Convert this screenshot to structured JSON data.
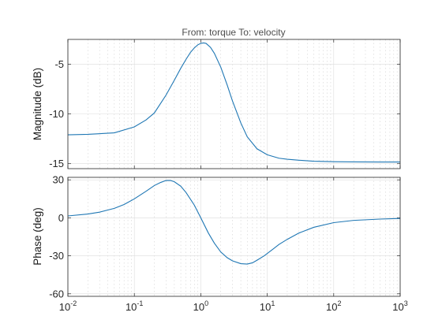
{
  "chart_data": {
    "type": "line",
    "title": "From: torque  To: velocity",
    "curve_color": "#1f77b4",
    "x_axis": {
      "scale": "log",
      "range": [
        0.01,
        1000
      ],
      "tick_values": [
        0.01,
        0.1,
        1,
        10,
        100,
        1000
      ],
      "tick_labels": [
        {
          "base": "10",
          "exp": "-2"
        },
        {
          "base": "10",
          "exp": "-1"
        },
        {
          "base": "10",
          "exp": "0"
        },
        {
          "base": "10",
          "exp": "1"
        },
        {
          "base": "10",
          "exp": "2"
        },
        {
          "base": "10",
          "exp": "3"
        }
      ],
      "grid": true,
      "minor_grid": true
    },
    "panels": [
      {
        "name": "magnitude",
        "ylabel": "Magnitude (dB)",
        "ylim": [
          -15.5,
          -2.5
        ],
        "yticks": [
          -15,
          -10,
          -5
        ],
        "ytick_labels": [
          "-15",
          "-10",
          "-5"
        ],
        "series": [
          {
            "x": [
              0.01,
              0.02,
              0.05,
              0.1,
              0.15,
              0.2,
              0.3,
              0.4,
              0.5,
              0.6,
              0.7,
              0.8,
              0.9,
              1.0,
              1.1,
              1.2,
              1.4,
              1.6,
              2.0,
              2.5,
              3,
              4,
              5,
              7,
              10,
              15,
              20,
              30,
              50,
              100,
              200,
              500,
              1000
            ],
            "y": [
              -12.1,
              -12.05,
              -11.9,
              -11.3,
              -10.6,
              -9.9,
              -8.1,
              -6.6,
              -5.4,
              -4.5,
              -3.8,
              -3.35,
              -3.05,
              -2.9,
              -2.85,
              -2.9,
              -3.3,
              -3.9,
              -5.3,
              -7.1,
              -8.7,
              -10.9,
              -12.3,
              -13.5,
              -14.1,
              -14.45,
              -14.55,
              -14.65,
              -14.75,
              -14.8,
              -14.82,
              -14.83,
              -14.83
            ]
          }
        ]
      },
      {
        "name": "phase",
        "ylabel": "Phase (deg)",
        "ylim": [
          -62,
          32
        ],
        "yticks": [
          -60,
          -30,
          0,
          30
        ],
        "ytick_labels": [
          "-60",
          "-30",
          "0",
          "30"
        ],
        "series": [
          {
            "x": [
              0.01,
              0.02,
              0.03,
              0.05,
              0.07,
              0.1,
              0.15,
              0.2,
              0.25,
              0.3,
              0.35,
              0.4,
              0.5,
              0.6,
              0.8,
              1.0,
              1.3,
              1.6,
              2.0,
              2.5,
              3,
              4,
              5,
              6,
              7,
              9,
              12,
              15,
              20,
              30,
              50,
              100,
              200,
              500,
              1000
            ],
            "y": [
              1.5,
              3,
              4.5,
              7.5,
              10.5,
              15,
              21,
              25.5,
              28,
              29.5,
              29.5,
              28.5,
              25,
              20,
              10,
              0,
              -12,
              -20,
              -27,
              -31.5,
              -34,
              -36.2,
              -36.5,
              -35.5,
              -33.5,
              -30,
              -25,
              -21,
              -17,
              -12,
              -7.5,
              -3.8,
              -2,
              -1,
              -0.5
            ]
          }
        ]
      }
    ]
  }
}
